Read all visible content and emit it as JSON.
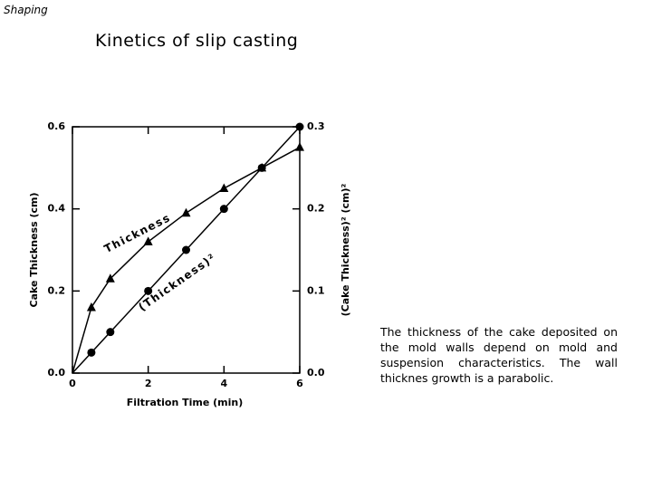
{
  "header": "Shaping",
  "title": "Kinetics of slip casting",
  "body_text": "The thickness of the cake deposited on the mold walls depend on mold and suspension characteristics. The wall thicknes growth is a parabolic.",
  "chart_data": {
    "type": "line",
    "x_label": "Filtration Time (min)",
    "y_label": "Cake Thickness (cm)",
    "y2_label": "(Cake Thickness)² (cm)²",
    "annotations": [
      "Thickness",
      "(Thickness)²"
    ],
    "x": [
      0.5,
      1,
      2,
      3,
      4,
      5,
      6
    ],
    "series": [
      {
        "name": "Thickness",
        "color": "#000000",
        "marker": "triangle",
        "values": [
          0.16,
          0.23,
          0.32,
          0.39,
          0.45,
          0.5,
          0.55
        ]
      },
      {
        "name": "(Thickness)²",
        "color": "#000000",
        "marker": "circle",
        "axis": "y2",
        "values": [
          0.025,
          0.05,
          0.1,
          0.15,
          0.2,
          0.25,
          0.3
        ]
      }
    ],
    "xlim": [
      0,
      6
    ],
    "xticks": [
      0,
      2,
      4,
      6
    ],
    "ylim": [
      0,
      0.6
    ],
    "yticks": [
      {
        "value": 0,
        "label": "0.0"
      },
      0.2,
      0.4,
      0.6
    ],
    "y2lim": [
      0,
      0.3
    ],
    "y2ticks": [
      {
        "value": 0,
        "label": "0.0"
      },
      0.1,
      0.2,
      0.3
    ]
  }
}
